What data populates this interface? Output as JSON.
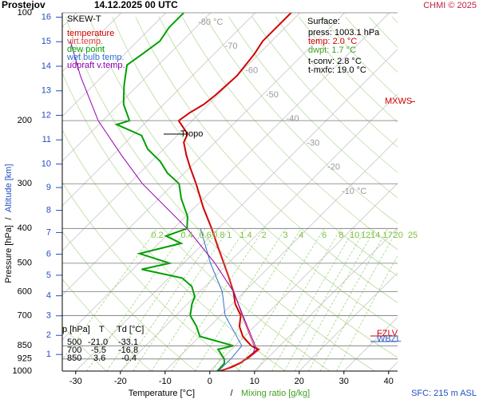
{
  "chart_data": {
    "type": "skewt",
    "station": "Prostejov",
    "date": "14.12.2025 00 UTC",
    "credit": "CHMI © 2025",
    "diagram_label": "SKEW-T",
    "x_label": "Temperature [°C]",
    "x_separator": "/",
    "x_label2": "Mixing ratio [g/kg]",
    "y_label": "Pressure [hPa]",
    "y_separator": "/",
    "y_label2": "Altitude [km]",
    "xlim": [
      -33,
      42
    ],
    "ylim": [
      1000,
      100
    ],
    "log_y": true,
    "xticks": [
      -30,
      -20,
      -10,
      0,
      10,
      20,
      30,
      40
    ],
    "yticks": [
      100,
      200,
      300,
      400,
      500,
      600,
      700,
      850,
      925,
      1000
    ],
    "altitude_ticks": [
      1,
      2,
      3,
      4,
      5,
      6,
      7,
      8,
      9,
      10,
      11,
      12,
      13,
      14,
      15,
      16
    ],
    "isotherm_labels": [
      {
        "value": -80,
        "label": "-80 °C"
      },
      -70,
      -60,
      -50,
      -40,
      -30,
      -20,
      {
        "value": -10,
        "label": "-10 °C"
      }
    ],
    "mixing_ratio_labels": [
      0.2,
      0.4,
      0.6,
      0.8,
      1,
      1.4,
      2,
      3,
      4,
      6,
      8,
      10,
      12,
      14,
      17,
      20,
      25
    ],
    "series": [
      {
        "name": "temperature",
        "color": "#d00000",
        "pressure": [
          1003.1,
          975,
          950,
          925,
          870,
          850,
          800,
          750,
          700,
          650,
          600,
          550,
          500,
          450,
          400,
          350,
          300,
          270,
          250,
          230,
          218,
          200,
          190,
          180,
          170,
          150,
          130,
          120,
          100
        ],
        "temperature": [
          2.0,
          4,
          5,
          5.4,
          5.9,
          3.6,
          -0.4,
          -3.4,
          -5.5,
          -9.3,
          -12.5,
          -16.5,
          -21,
          -26,
          -31.5,
          -38,
          -45,
          -50,
          -53.5,
          -57,
          -58,
          -63,
          -62.3,
          -61,
          -60.5,
          -60,
          -61,
          -62,
          -62
        ]
      },
      {
        "name": "virt.temp.",
        "color": "#e04040",
        "pressure": [
          1003.1,
          925,
          870,
          850,
          700,
          500,
          400
        ],
        "temperature": [
          2.3,
          5.8,
          6.3,
          4.2,
          -5.2,
          -20.9,
          -31.4
        ]
      },
      {
        "name": "dew point",
        "color": "#00a000",
        "pressure": [
          1003.1,
          950,
          925,
          870,
          850,
          800,
          750,
          700,
          650,
          620,
          580,
          550,
          520,
          500,
          470,
          440,
          420,
          400,
          370,
          330,
          300,
          280,
          260,
          240,
          220,
          205,
          200,
          180,
          160,
          140,
          130,
          120,
          110,
          100
        ],
        "temperature": [
          1.7,
          1.5,
          0.5,
          -3,
          -0.4,
          -10,
          -13,
          -16.8,
          -19,
          -20,
          -23,
          -27,
          -38,
          -33.1,
          -42,
          -35,
          -40,
          -37,
          -39.6,
          -45,
          -48.8,
          -53.8,
          -58,
          -63.6,
          -68,
          -76,
          -74,
          -79,
          -83,
          -87,
          -86,
          -85,
          -86,
          -86
        ]
      },
      {
        "name": "wet bulb temp.",
        "color": "#3070d0",
        "pressure": [
          1003.1,
          925,
          850,
          700,
          600,
          500,
          400
        ],
        "temperature": [
          1.9,
          2,
          1.5,
          -9,
          -15,
          -24,
          -34
        ]
      },
      {
        "name": "udpraft v.temp.",
        "color": "#9000b0",
        "pressure": [
          900,
          850,
          700,
          600,
          500,
          400,
          300,
          250,
          200,
          150,
          120
        ],
        "temperature": [
          6,
          4.5,
          -5,
          -12.5,
          -23,
          -37,
          -57,
          -68,
          -81,
          -95,
          -105
        ]
      }
    ],
    "surface": {
      "title": "Surface:",
      "lines": [
        "press: 1003.1 hPa",
        "temp: 2.0 °C",
        "dwpt: 1.7 °C",
        "t-conv: 2.8 °C",
        "t-mxfc: 19.0 °C"
      ]
    },
    "table": {
      "header": [
        "p [hPa]",
        "T",
        "Td [°C]"
      ],
      "rows": [
        [
          "500",
          "-21.0",
          "-33.1"
        ],
        [
          "700",
          "-5.5",
          "-16.8"
        ],
        [
          "850",
          "3.6",
          "-0.4"
        ]
      ]
    },
    "tropopause": {
      "label": "Tropo",
      "pressure": 218
    },
    "levels": [
      {
        "label": "FZLV",
        "pressure": 798,
        "color": "#d00000"
      },
      {
        "label": "WBZL",
        "pressure": 827,
        "color": "#3060c0"
      },
      {
        "label": "MXWS",
        "pressure": 177,
        "color": "#d00000"
      }
    ],
    "footer": "SFC: 215 m ASL"
  }
}
